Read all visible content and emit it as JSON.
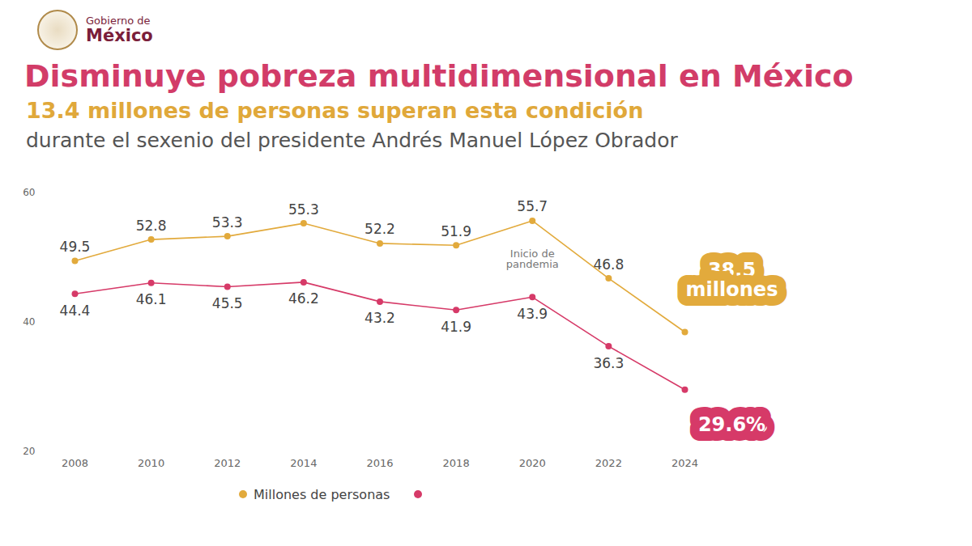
{
  "chart_data": {
    "type": "line",
    "header": [
      "Gobierno de",
      "México"
    ],
    "title": "Disminuye pobreza multidimensional en México",
    "subtitle": [
      "13.4 millones de personas superan esta condición",
      "durante el sexenio del presidente Andrés Manuel López Obrador"
    ],
    "x": [
      2008,
      2010,
      2012,
      2014,
      2016,
      2018,
      2020,
      2022,
      2024
    ],
    "xlim": [
      2008,
      2024
    ],
    "xticks": [
      2008,
      2010,
      2012,
      2014,
      2016,
      2018,
      2020,
      2022,
      2024
    ],
    "ylim": [
      20,
      60
    ],
    "yticks": [
      20,
      40,
      60
    ],
    "grid": false,
    "data_labels": true,
    "legend": "bottom",
    "annotations": [
      {
        "text": "Inicio de pandemia",
        "x": 2020
      }
    ],
    "series": [
      {
        "name": "Millones de personas",
        "color": "#e2aa3c",
        "marker": "circle",
        "values": [
          49.5,
          52.8,
          53.3,
          55.3,
          52.2,
          51.9,
          55.7,
          46.8,
          38.5
        ],
        "value_labels": [
          null,
          null,
          null,
          null,
          null,
          null,
          null,
          null,
          "38.5 millones"
        ]
      },
      {
        "name": null,
        "color": "#d63a68",
        "marker": "circle",
        "values": [
          44.4,
          46.1,
          45.5,
          46.2,
          43.2,
          41.9,
          43.9,
          36.3,
          29.6
        ],
        "value_labels": [
          null,
          null,
          null,
          null,
          null,
          null,
          null,
          null,
          "29.6%"
        ]
      }
    ]
  }
}
